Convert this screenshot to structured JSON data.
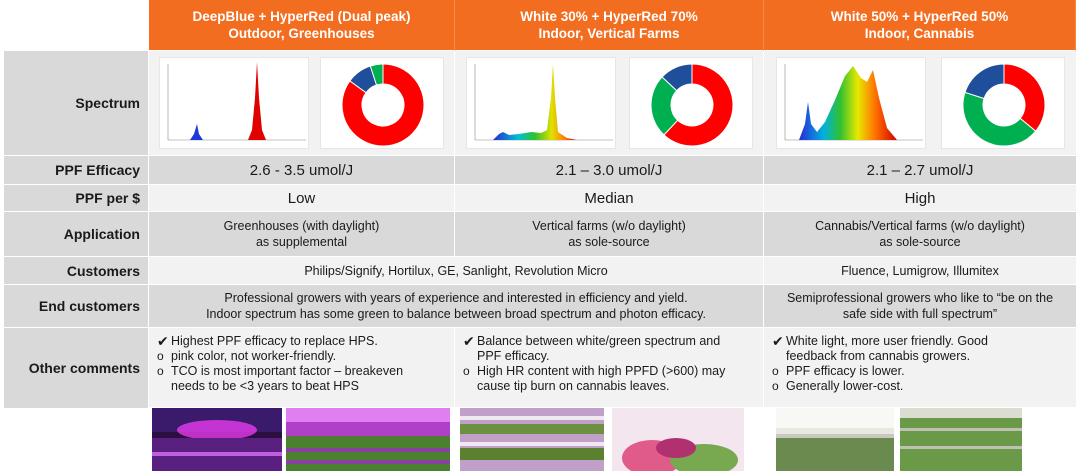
{
  "columns": [
    {
      "title": "DeepBlue + HyperRed (Dual peak)",
      "subtitle": "Outdoor, Greenhouses"
    },
    {
      "title": "White 30% + HyperRed 70%",
      "subtitle": "Indoor, Vertical Farms"
    },
    {
      "title": "White 50% + HyperRed 50%",
      "subtitle": "Indoor, Cannabis"
    }
  ],
  "row_labels": {
    "spectrum": "Spectrum",
    "ppf_efficacy": "PPF Efficacy",
    "ppf_per_dollar": "PPF per $",
    "application": "Application",
    "customers": "Customers",
    "end_customers": "End customers",
    "other_comments": "Other comments"
  },
  "ppf_efficacy": [
    "2.6 - 3.5 umol/J",
    "2.1 – 3.0  umol/J",
    "2.1 – 2.7 umol/J"
  ],
  "ppf_per_dollar": [
    "Low",
    "Median",
    "High"
  ],
  "application": [
    [
      "Greenhouses (with daylight)",
      "as supplemental"
    ],
    [
      "Vertical farms (w/o daylight)",
      "as sole-source"
    ],
    [
      "Cannabis/Vertical farms (w/o daylight)",
      "as sole-source"
    ]
  ],
  "customers": {
    "ab": "Philips/Signify, Hortilux, GE, Sanlight, Revolution Micro",
    "c": "Fluence, Lumigrow, Illumitex"
  },
  "end_customers": {
    "ab": [
      "Professional growers with years of experience and interested in efficiency and yield.",
      "Indoor spectrum has some green to balance between broad spectrum and photon efficacy."
    ],
    "c": [
      "Semiprofessional growers who like to “be on the",
      "safe side with full spectrum”"
    ]
  },
  "other_comments": [
    {
      "lines": [
        {
          "mark": "✔",
          "text": "Highest PPF efficacy to replace HPS."
        },
        {
          "mark": "o",
          "text": "pink color, not worker-friendly."
        },
        {
          "mark": "o",
          "text": "TCO is most important factor – breakeven"
        },
        {
          "mark": "",
          "text": "needs to be <3 years to beat HPS"
        }
      ]
    },
    {
      "lines": [
        {
          "mark": "✔",
          "text": "Balance between white/green spectrum and"
        },
        {
          "mark": "",
          "text": "PPF efficacy."
        },
        {
          "mark": "o",
          "text": "High HR content with high PPFD (>600) may"
        },
        {
          "mark": "",
          "text": "cause tip burn on cannabis leaves."
        }
      ]
    },
    {
      "lines": [
        {
          "mark": "✔",
          "text": "White light, more user friendly. Good"
        },
        {
          "mark": "",
          "text": "feedback from cannabis growers."
        },
        {
          "mark": "o",
          "text": "PPF efficacy is lower."
        },
        {
          "mark": "o",
          "text": "Generally lower-cost."
        }
      ]
    }
  ],
  "donuts": [
    [
      {
        "color": "#ff0000",
        "value": 85
      },
      {
        "color": "#1f4e9a",
        "value": 10
      },
      {
        "color": "#00b050",
        "value": 5
      }
    ],
    [
      {
        "color": "#ff0000",
        "value": 62
      },
      {
        "color": "#00b050",
        "value": 25
      },
      {
        "color": "#1f4e9a",
        "value": 13
      }
    ],
    [
      {
        "color": "#ff0000",
        "value": 36
      },
      {
        "color": "#00b050",
        "value": 44
      },
      {
        "color": "#1f4e9a",
        "value": 20
      }
    ]
  ],
  "colors": {
    "header": "#f36d21",
    "row_dark": "#d9d9d9",
    "row_light": "#f2f2f2",
    "red": "#ff0000",
    "blue": "#1f4e9a",
    "green": "#00b050"
  }
}
